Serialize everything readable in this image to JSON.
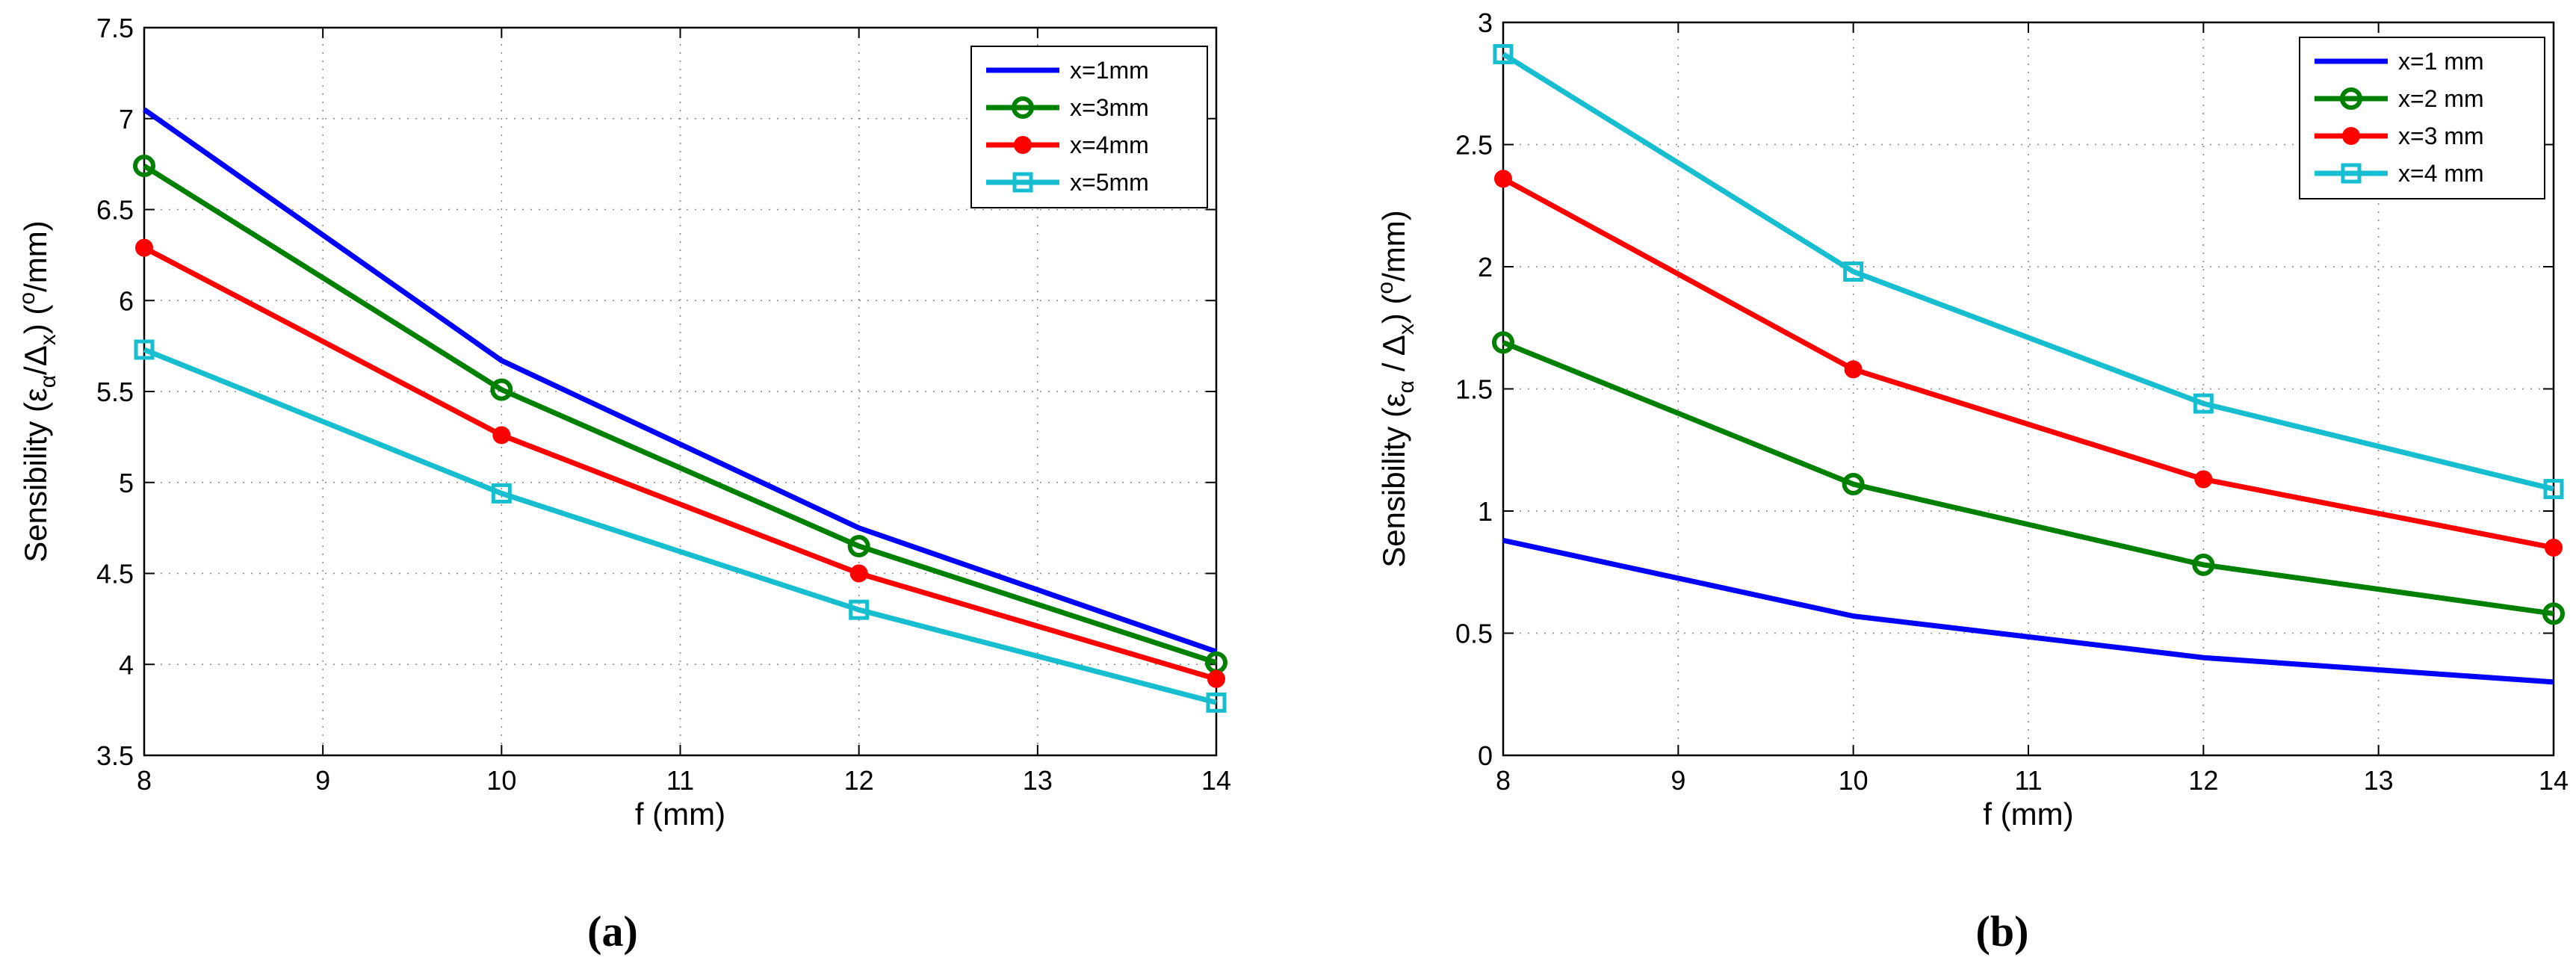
{
  "chart_data": [
    {
      "type": "line",
      "panel_label": "(a)",
      "xlabel": "f (mm)",
      "ylabel": {
        "prefix": "Sensibility (ε",
        "sub1": "α",
        "mid": "/Δ",
        "sub2": "x",
        "suffix1": ") (",
        "sup": "o",
        "suffix2": "/mm)"
      },
      "x": [
        8,
        10,
        12,
        14
      ],
      "xlim": [
        8,
        14
      ],
      "ylim": [
        3.5,
        7.5
      ],
      "xticks": [
        "8",
        "9",
        "10",
        "11",
        "12",
        "13",
        "14"
      ],
      "yticks": [
        "3.5",
        "4",
        "4.5",
        "5",
        "5.5",
        "6",
        "6.5",
        "7",
        "7.5"
      ],
      "grid": true,
      "legend_position": "top-right",
      "series": [
        {
          "name": "x=1mm",
          "values": [
            7.05,
            5.67,
            4.75,
            4.07
          ],
          "color": "#0000ff",
          "marker": "none"
        },
        {
          "name": "x=3mm",
          "values": [
            6.74,
            5.51,
            4.65,
            4.01
          ],
          "color": "#008000",
          "marker": "circle"
        },
        {
          "name": "x=4mm",
          "values": [
            6.29,
            5.26,
            4.5,
            3.92
          ],
          "color": "#ff0000",
          "marker": "dot"
        },
        {
          "name": "x=5mm",
          "values": [
            5.73,
            4.94,
            4.3,
            3.79
          ],
          "color": "#17becf",
          "marker": "square"
        }
      ]
    },
    {
      "type": "line",
      "panel_label": "(b)",
      "xlabel": "f (mm)",
      "ylabel": {
        "prefix": "Sensibility (ε",
        "sub1": "α",
        "mid": " / Δ",
        "sub2": "x",
        "suffix1": ") (",
        "sup": "o",
        "suffix2": "/mm)"
      },
      "x": [
        8,
        10,
        12,
        14
      ],
      "xlim": [
        8,
        14
      ],
      "ylim": [
        0,
        3
      ],
      "xticks": [
        "8",
        "9",
        "10",
        "11",
        "12",
        "13",
        "14"
      ],
      "yticks": [
        "0",
        "0.5",
        "1",
        "1.5",
        "2",
        "2.5",
        "3"
      ],
      "grid": true,
      "legend_position": "top-right",
      "series": [
        {
          "name": "x=1 mm",
          "values": [
            0.88,
            0.57,
            0.4,
            0.3
          ],
          "color": "#0000ff",
          "marker": "none"
        },
        {
          "name": "x=2 mm",
          "values": [
            1.69,
            1.11,
            0.78,
            0.58
          ],
          "color": "#008000",
          "marker": "circle"
        },
        {
          "name": "x=3 mm",
          "values": [
            2.36,
            1.58,
            1.13,
            0.85
          ],
          "color": "#ff0000",
          "marker": "dot"
        },
        {
          "name": "x=4 mm",
          "values": [
            2.87,
            1.98,
            1.44,
            1.09
          ],
          "color": "#17becf",
          "marker": "square"
        }
      ]
    }
  ]
}
